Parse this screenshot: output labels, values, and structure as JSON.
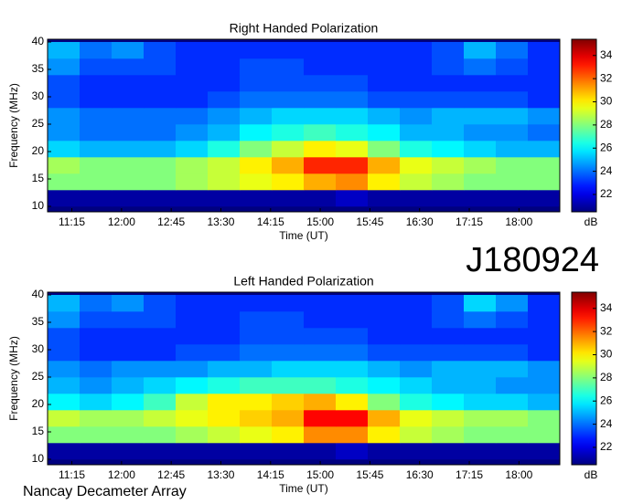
{
  "chart_data": [
    {
      "type": "heatmap",
      "title": "Right Handed Polarization",
      "x_label": "Time (UT)",
      "y_label": "Frequency (MHz)",
      "colorbar_label": "dB",
      "colormap": "jet",
      "xlim": [
        653,
        1117
      ],
      "ylim": [
        9,
        40.5
      ],
      "clim": [
        20.5,
        35.4
      ],
      "xticks": [
        {
          "value": 675,
          "label": "11:15"
        },
        {
          "value": 720,
          "label": "12:00"
        },
        {
          "value": 765,
          "label": "12:45"
        },
        {
          "value": 810,
          "label": "13:30"
        },
        {
          "value": 855,
          "label": "14:15"
        },
        {
          "value": 900,
          "label": "15:00"
        },
        {
          "value": 945,
          "label": "15:45"
        },
        {
          "value": 990,
          "label": "16:30"
        },
        {
          "value": 1035,
          "label": "17:15"
        },
        {
          "value": 1080,
          "label": "18:00"
        }
      ],
      "yticks": [
        10,
        15,
        20,
        25,
        30,
        35,
        40
      ],
      "cticks": [
        22,
        24,
        26,
        28,
        30,
        32,
        34
      ],
      "x_edges": [
        653,
        682,
        711,
        740,
        769,
        798,
        827,
        856,
        885,
        914,
        943,
        972,
        1001,
        1030,
        1059,
        1088,
        1117
      ],
      "y_edges": [
        10,
        13,
        16,
        19,
        22,
        25,
        28,
        31,
        34,
        37,
        40
      ],
      "z": [
        [
          21,
          21,
          21,
          21,
          21,
          21,
          21,
          21,
          21,
          21.5,
          21,
          21,
          21,
          21,
          21,
          21
        ],
        [
          28,
          28,
          28,
          28,
          28.5,
          29,
          29.5,
          30,
          31,
          31.5,
          30,
          29,
          28.5,
          28,
          28,
          28
        ],
        [
          28.5,
          28,
          28,
          28,
          28.5,
          29,
          30,
          31,
          33,
          33,
          31,
          29.5,
          29,
          28.5,
          28,
          28
        ],
        [
          25.5,
          25,
          25,
          25,
          25.5,
          26.5,
          28,
          29,
          30,
          29.5,
          28,
          26.5,
          26,
          25.5,
          25,
          25
        ],
        [
          24.5,
          24,
          24,
          24,
          24.5,
          25,
          26,
          26.5,
          27,
          26.5,
          26,
          25,
          25,
          24.5,
          24.5,
          24
        ],
        [
          24.5,
          24,
          24,
          24,
          24,
          24.5,
          25,
          25.5,
          25.5,
          25.5,
          25,
          24.5,
          25,
          25,
          25,
          24.5
        ],
        [
          23.5,
          23,
          23,
          23,
          23,
          23.5,
          24,
          24,
          24,
          24,
          23.5,
          23.5,
          23.5,
          23.5,
          23.5,
          23
        ],
        [
          23.5,
          23,
          23,
          23,
          23,
          23,
          23.5,
          23.5,
          23.5,
          23.5,
          23,
          23,
          23,
          23,
          23,
          23
        ],
        [
          24.5,
          23.5,
          23.5,
          23.5,
          23,
          23,
          23.5,
          23.5,
          23,
          23,
          23,
          23,
          23.5,
          24,
          23.5,
          23
        ],
        [
          25,
          24,
          24.5,
          23.5,
          23,
          23,
          23,
          23,
          23,
          23,
          23,
          23,
          23.5,
          25,
          24,
          23
        ]
      ]
    },
    {
      "type": "heatmap",
      "title": "Left Handed Polarization",
      "x_label": "Time (UT)",
      "y_label": "Frequency (MHz)",
      "colorbar_label": "dB",
      "colormap": "jet",
      "xlim": [
        653,
        1117
      ],
      "ylim": [
        9,
        40.5
      ],
      "clim": [
        20.5,
        35.4
      ],
      "xticks": [
        {
          "value": 675,
          "label": "11:15"
        },
        {
          "value": 720,
          "label": "12:00"
        },
        {
          "value": 765,
          "label": "12:45"
        },
        {
          "value": 810,
          "label": "13:30"
        },
        {
          "value": 855,
          "label": "14:15"
        },
        {
          "value": 900,
          "label": "15:00"
        },
        {
          "value": 945,
          "label": "15:45"
        },
        {
          "value": 990,
          "label": "16:30"
        },
        {
          "value": 1035,
          "label": "17:15"
        },
        {
          "value": 1080,
          "label": "18:00"
        }
      ],
      "yticks": [
        10,
        15,
        20,
        25,
        30,
        35,
        40
      ],
      "cticks": [
        22,
        24,
        26,
        28,
        30,
        32,
        34
      ],
      "x_edges": [
        653,
        682,
        711,
        740,
        769,
        798,
        827,
        856,
        885,
        914,
        943,
        972,
        1001,
        1030,
        1059,
        1088,
        1117
      ],
      "y_edges": [
        10,
        13,
        16,
        19,
        22,
        25,
        28,
        31,
        34,
        37,
        40
      ],
      "z": [
        [
          21,
          21,
          21,
          21,
          21,
          21,
          21,
          21,
          21,
          21.5,
          21,
          21,
          21,
          21,
          21,
          21
        ],
        [
          28,
          28,
          28,
          28,
          28.5,
          29,
          29.5,
          30,
          31.5,
          31.5,
          30,
          29,
          28.5,
          28,
          28,
          28
        ],
        [
          29,
          28.5,
          28.5,
          29,
          29.5,
          30,
          30.5,
          31,
          33.5,
          33.5,
          31,
          29.5,
          29,
          28.5,
          28.5,
          28
        ],
        [
          26,
          25.5,
          26,
          27,
          29,
          30,
          30,
          30.5,
          31,
          30,
          28,
          26.5,
          26,
          25.5,
          25.5,
          25
        ],
        [
          25,
          24.5,
          25,
          25.5,
          26,
          26.5,
          27,
          27,
          27,
          26.5,
          26,
          25.5,
          25,
          25,
          24.5,
          24.5
        ],
        [
          24.5,
          24,
          24.5,
          24.5,
          24.5,
          25,
          25,
          25.5,
          25.5,
          25.5,
          25,
          24.5,
          25,
          25,
          25,
          24.5
        ],
        [
          23.5,
          23,
          23,
          23,
          23.5,
          23.5,
          24,
          24,
          24,
          24,
          23.5,
          23.5,
          23.5,
          23.5,
          23.5,
          23
        ],
        [
          23.5,
          23,
          23,
          23,
          23,
          23,
          23.5,
          23.5,
          23.5,
          23.5,
          23,
          23,
          23,
          23,
          23,
          23
        ],
        [
          24.5,
          23.5,
          23.5,
          23.5,
          23,
          23,
          23.5,
          23.5,
          23,
          23,
          23,
          23,
          23.5,
          24,
          23.5,
          23
        ],
        [
          25,
          24,
          24.5,
          23.5,
          23,
          23,
          23,
          23,
          23,
          23,
          23,
          23,
          23.5,
          25.5,
          24.5,
          23
        ]
      ]
    }
  ],
  "event_label": "J180924",
  "instrument": "Nancay Decameter Array"
}
